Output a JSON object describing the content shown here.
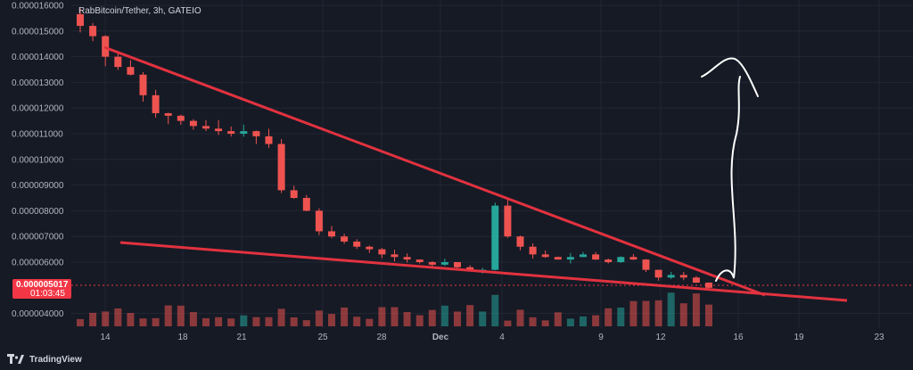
{
  "header": {
    "symbol_label": "RabBitcoin/Tether, 3h, GATEIO"
  },
  "price_tag": {
    "price": "0.000005017",
    "countdown": "01:03:45"
  },
  "branding": {
    "name": "TradingView",
    "logo_icon": "tradingview-logo-icon"
  },
  "colors": {
    "background": "#161a25",
    "grid": "#232735",
    "up": "#26a69a",
    "down": "#ef5350",
    "trendline": "#e2323f",
    "annotation": "#ffffff",
    "axis_text": "#b2b5be"
  },
  "chart_data": {
    "type": "candlestick",
    "title": "RabBitcoin/Tether, 3h, GATEIO",
    "y_tick_labels": [
      "0.000016000",
      "0.000015000",
      "0.000014000",
      "0.000013000",
      "0.000012000",
      "0.000011000",
      "0.000010000",
      "0.000009000",
      "0.000008000",
      "0.000007000",
      "0.000006000",
      "0.000004000"
    ],
    "x_tick_labels": [
      "14",
      "18",
      "21",
      "25",
      "28",
      "Dec",
      "4",
      "9",
      "12",
      "16",
      "19",
      "23"
    ],
    "ylim": [
      3.6e-06,
      1.63e-05
    ],
    "grid": true,
    "last_price": 5.017e-06,
    "countdown": "01:03:45",
    "volume_pane": true,
    "approx_closes": [
      1.52e-05,
      1.48e-05,
      1.4e-05,
      1.36e-05,
      1.33e-05,
      1.25e-05,
      1.18e-05,
      1.17e-05,
      1.15e-05,
      1.13e-05,
      1.12e-05,
      1.11e-05,
      1.1e-05,
      1.11e-05,
      1.09e-05,
      1.06e-05,
      8.8e-06,
      8.5e-06,
      8e-06,
      7.2e-06,
      7e-06,
      6.8e-06,
      6.6e-06,
      6.5e-06,
      6.3e-06,
      6.2e-06,
      6.1e-06,
      6e-06,
      5.9e-06,
      6e-06,
      5.8e-06,
      5.7e-06,
      5.7e-06,
      8.2e-06,
      7e-06,
      6.6e-06,
      6.3e-06,
      6.2e-06,
      6.1e-06,
      6.2e-06,
      6.3e-06,
      6.1e-06,
      6e-06,
      6.2e-06,
      6.1e-06,
      5.7e-06,
      5.4e-06,
      5.5e-06,
      5.4e-06,
      5.2e-06,
      5e-06
    ]
  }
}
